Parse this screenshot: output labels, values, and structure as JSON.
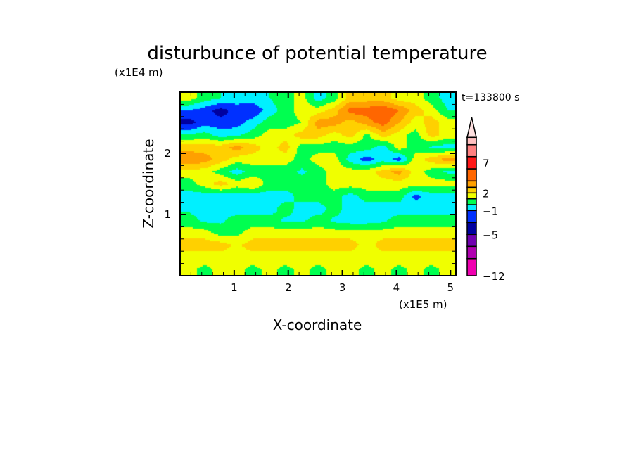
{
  "chart_data": {
    "type": "heatmap",
    "subtype": "filled-contour",
    "title": "disturbunce of potential temperature",
    "xlabel": "X-coordinate",
    "ylabel": "Z-coordinate",
    "x_unit": "(x1E5 m)",
    "y_unit": "(x1E4 m)",
    "annotation": "t=133800 s",
    "xlim": [
      0,
      5.1
    ],
    "ylim": [
      0,
      3.0
    ],
    "x_ticks": [
      1,
      2,
      3,
      4,
      5
    ],
    "x_tick_labels": [
      "1",
      "2",
      "3",
      "4",
      "5"
    ],
    "y_ticks": [
      1,
      2
    ],
    "y_tick_labels": [
      "1",
      "2"
    ],
    "grid": false,
    "legend": "colorbar-right",
    "colorbar": {
      "levels": [
        -12,
        -10,
        -7,
        -5,
        -3,
        -2,
        -1,
        0,
        1,
        2,
        3,
        5,
        7,
        9,
        11
      ],
      "labeled_levels": [
        "7",
        "2",
        "−1",
        "−5",
        "−12"
      ],
      "colors": [
        "#f000b0",
        "#b000b0",
        "#7000b0",
        "#0000a0",
        "#0030ff",
        "#00f0ff",
        "#00ff50",
        "#f0ff00",
        "#ffd000",
        "#ffa000",
        "#ff6600",
        "#ff1818",
        "#ff8080",
        "#ffc0c0"
      ],
      "extend_color": "#ffe0e0"
    },
    "x": [
      0.15,
      0.45,
      0.75,
      1.05,
      1.35,
      1.65,
      1.95,
      2.25,
      2.55,
      2.85,
      3.15,
      3.45,
      3.75,
      4.05,
      4.35,
      4.65,
      4.95
    ],
    "y": [
      2.9,
      2.7,
      2.5,
      2.3,
      2.1,
      1.9,
      1.7,
      1.5,
      1.3,
      1.1,
      0.9,
      0.7,
      0.5,
      0.3,
      0.1
    ],
    "z": [
      [
        0.5,
        -0.5,
        -1,
        -1.5,
        -1.5,
        -1,
        -0.5,
        0.5,
        -1.5,
        -0.5,
        1.5,
        1.5,
        1.5,
        0.5,
        0.5,
        -0.5,
        -1.5
      ],
      [
        -2,
        -2.5,
        -3.5,
        -2.5,
        -2.8,
        -1.5,
        -0.5,
        0.5,
        0.5,
        1.5,
        3.5,
        3.5,
        4,
        3,
        1.5,
        0.5,
        -1
      ],
      [
        -3.5,
        -2.5,
        -2.6,
        -2.5,
        -1.5,
        -0.5,
        -0.5,
        0,
        2.5,
        2.5,
        1.5,
        2.5,
        3.5,
        2,
        0.5,
        1.5,
        0.5
      ],
      [
        -1,
        -0.5,
        -1.5,
        -1.2,
        -0.5,
        0.5,
        0.5,
        1.5,
        1.5,
        0.5,
        1.5,
        -0.3,
        1.5,
        0.5,
        -0.5,
        1.5,
        0.5
      ],
      [
        1.5,
        1.5,
        1.5,
        2.5,
        1.5,
        0.5,
        1.5,
        -0.5,
        -0.5,
        -0.5,
        -0.5,
        -0.5,
        -1.5,
        0.5,
        -0.5,
        -1.2,
        -1.5
      ],
      [
        3,
        2.5,
        1.5,
        0.5,
        0.5,
        0.5,
        0.5,
        -0.5,
        0.5,
        0.5,
        -1.5,
        -2.5,
        -1.5,
        -2.5,
        0.5,
        1.5,
        2.5
      ],
      [
        0.5,
        0.5,
        -0.5,
        -1.5,
        -0.5,
        -0.5,
        -0.5,
        -1.2,
        -0.5,
        0.5,
        0.5,
        0.5,
        1.5,
        2.5,
        0.5,
        -0.5,
        -1.2
      ],
      [
        -0.5,
        0.5,
        1.5,
        0.5,
        1,
        -0.5,
        -0.5,
        -0.5,
        -0.5,
        0.5,
        0.5,
        0.5,
        0.5,
        0.5,
        0.5,
        0.5,
        0.5
      ],
      [
        -1.5,
        -1.5,
        -1.5,
        -1.5,
        -1.5,
        -1.5,
        -1.5,
        -0.5,
        -0.5,
        -0.5,
        -1.5,
        -0.5,
        -0.5,
        -0.5,
        -2.3,
        -1.5,
        -1.5
      ],
      [
        -1.2,
        -1.5,
        -1.5,
        -1.5,
        -1.5,
        -1.5,
        -0.5,
        -1.5,
        -1.5,
        -0.5,
        -1.5,
        -1.5,
        -1.5,
        -1.5,
        -1.5,
        -1.5,
        -1.5
      ],
      [
        -0.5,
        -1.2,
        -1.2,
        -0.5,
        -0.5,
        -0.5,
        -1.2,
        -1.2,
        -0.5,
        -1.2,
        -1.5,
        -1.5,
        -1.2,
        -0.5,
        -0.5,
        -0.5,
        -0.5
      ],
      [
        0.5,
        0.5,
        -0.5,
        -0.3,
        0.5,
        0.5,
        0.5,
        0.5,
        0.5,
        0.5,
        0.5,
        0.5,
        0.5,
        0.5,
        0.5,
        0.5,
        0.5
      ],
      [
        1.5,
        1.5,
        1.5,
        0.8,
        1.5,
        1.5,
        1.5,
        1.5,
        1.5,
        1.5,
        1.5,
        0.5,
        1.5,
        1.5,
        1.5,
        1.5,
        1.5
      ],
      [
        0.5,
        0.5,
        0.5,
        0.5,
        0.5,
        0.5,
        0.5,
        0.5,
        0.5,
        0.5,
        0.5,
        0.5,
        0.5,
        0.5,
        0.5,
        0.5,
        0.5
      ],
      [
        0.3,
        -0.3,
        0.3,
        0.3,
        -0.3,
        0.3,
        -0.3,
        0.3,
        -0.3,
        0.3,
        0.3,
        -0.3,
        0.3,
        -0.3,
        0.3,
        -0.3,
        0.3
      ]
    ]
  }
}
